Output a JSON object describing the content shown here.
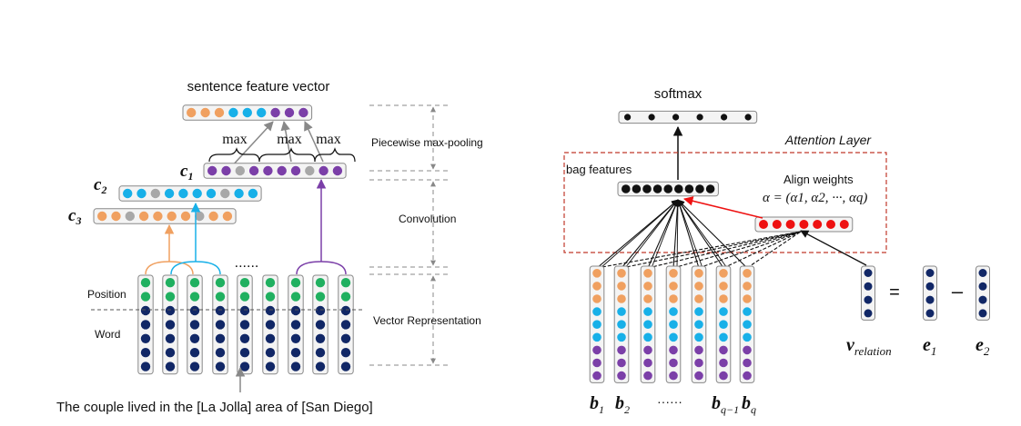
{
  "colors": {
    "orange": "#f0a060",
    "cyan": "#18b0e8",
    "gray": "#a8a8a8",
    "purple": "#7b3fa8",
    "green": "#20b060",
    "navy": "#112766",
    "black": "#111111",
    "red": "#ee1111",
    "attention_border": "#c0392b",
    "box_fill": "#f4f4f4",
    "box_stroke": "#888888",
    "dash_gray": "#888888"
  },
  "left_panel": {
    "sentence_feature_vector_label": "sentence feature vector",
    "sentence_vector_colors": [
      "orange",
      "orange",
      "orange",
      "cyan",
      "cyan",
      "cyan",
      "purple",
      "purple",
      "purple"
    ],
    "max_label": "max",
    "c1_label": "c",
    "c1_sub": "1",
    "c2_label": "c",
    "c2_sub": "2",
    "c3_label": "c",
    "c3_sub": "3",
    "c1_colors": [
      "purple",
      "purple",
      "gray",
      "purple",
      "purple",
      "purple",
      "purple",
      "gray",
      "purple",
      "purple"
    ],
    "c2_colors": [
      "cyan",
      "cyan",
      "gray",
      "cyan",
      "cyan",
      "cyan",
      "cyan",
      "gray",
      "cyan",
      "cyan"
    ],
    "c3_colors": [
      "orange",
      "orange",
      "gray",
      "orange",
      "orange",
      "orange",
      "orange",
      "gray",
      "orange",
      "orange"
    ],
    "position_label": "Position",
    "word_label": "Word",
    "ellipsis": "......",
    "stage_labels": {
      "pooling": "Piecewise max-pooling",
      "convolution": "Convolution",
      "vector": "Vector Representation"
    },
    "sentence": "The couple lived in the [La Jolla]  area of  [San Diego]"
  },
  "right_panel": {
    "softmax_label": "softmax",
    "attention_layer_label": "Attention Layer",
    "bag_features_label": "bag features",
    "align_weights_label": "Align weights",
    "alpha_formula": "α = (α1, α2, ···, αq)",
    "bag_vector_count": 9,
    "softmax_count": 6,
    "align_count": 7,
    "b_vector_colors": [
      "orange",
      "orange",
      "orange",
      "cyan",
      "cyan",
      "cyan",
      "purple",
      "purple",
      "purple"
    ],
    "b_labels": [
      {
        "main": "b",
        "sub": "1"
      },
      {
        "main": "b",
        "sub": "2"
      },
      {
        "main": "b",
        "sub": "q−1"
      },
      {
        "main": "b",
        "sub": "q"
      }
    ],
    "b_ellipsis": "······",
    "v_label": "v",
    "v_sub": "relation",
    "equals": "=",
    "minus": "–",
    "e1": {
      "main": "e",
      "sub": "1"
    },
    "e2": {
      "main": "e",
      "sub": "2"
    }
  }
}
